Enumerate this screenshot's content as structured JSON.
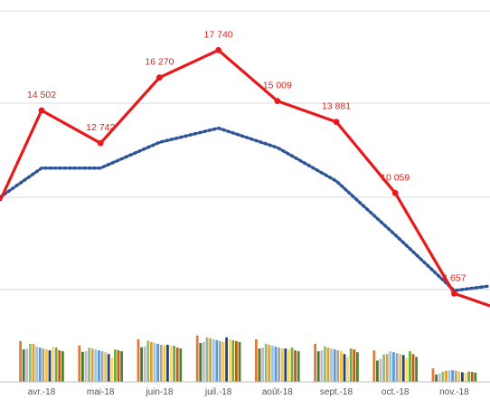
{
  "chart_data": {
    "type": "bar",
    "categories": [
      "avr.-18",
      "mai-18",
      "juin-18",
      "juil.-18",
      "août-18",
      "sept.-18",
      "oct.-18",
      "nov.-18"
    ],
    "bar_series": [
      [
        2200,
        1960,
        2300,
        2500,
        2300,
        2050,
        1700,
        730
      ],
      [
        1750,
        1620,
        1870,
        2100,
        1800,
        1650,
        1150,
        400
      ],
      [
        1800,
        1650,
        1920,
        2150,
        1850,
        1700,
        1250,
        450
      ],
      [
        2050,
        1840,
        2220,
        2400,
        2060,
        1920,
        1480,
        550
      ],
      [
        2050,
        1800,
        2150,
        2350,
        2000,
        1850,
        1500,
        600
      ],
      [
        1900,
        1750,
        2100,
        2300,
        1950,
        1800,
        1650,
        620
      ],
      [
        1850,
        1700,
        2050,
        2250,
        1900,
        1750,
        1600,
        630
      ],
      [
        1800,
        1650,
        2000,
        2200,
        1850,
        1700,
        1550,
        600
      ],
      [
        1750,
        1600,
        1950,
        2150,
        1800,
        1650,
        1500,
        560
      ],
      [
        1700,
        1500,
        2000,
        2400,
        1800,
        1500,
        1450,
        520
      ],
      [
        1900,
        1300,
        1950,
        2300,
        1750,
        1350,
        1300,
        480
      ],
      [
        1850,
        1750,
        1950,
        2250,
        1850,
        1800,
        1650,
        560
      ],
      [
        1700,
        1700,
        1850,
        2200,
        1700,
        1750,
        1500,
        540
      ],
      [
        1650,
        1650,
        1800,
        2150,
        1650,
        1600,
        1350,
        500
      ]
    ],
    "bar_colors": [
      "#e07b39",
      "#4a7a2c",
      "#c7b8d6",
      "#8fbf7f",
      "#e5a02f",
      "#9ec5e6",
      "#5b9bd5",
      "#a5a5a5",
      "#f4c542",
      "#264478",
      "#ffd966",
      "#70ad47",
      "#c55a11",
      "#548235"
    ],
    "total_line": {
      "values": [
        14502,
        12742,
        16270,
        17740,
        15009,
        13881,
        10059,
        4657
      ],
      "labels": [
        "14 502",
        "12 742",
        "16 270",
        "17 740",
        "15 009",
        "13 881",
        "10 059",
        "4 657"
      ],
      "color": "#e8181b"
    },
    "trend_color": "#2e5597",
    "grid": true
  }
}
